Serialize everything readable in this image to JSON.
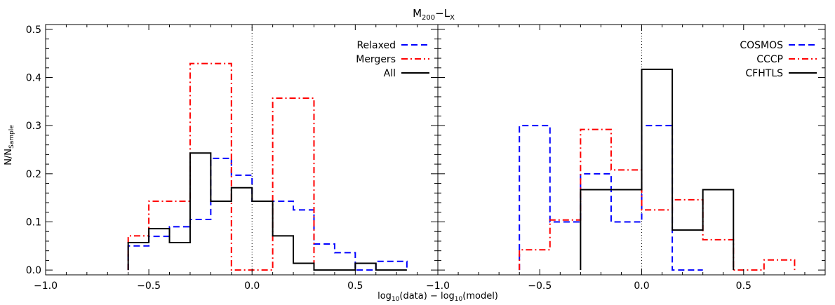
{
  "title_main": "M",
  "title_sub1": "200",
  "title_mid": "−L",
  "title_sub2": "X",
  "ylabel_main": "N/N",
  "ylabel_sub": "Sample",
  "xlabel": {
    "p1": "log",
    "s1": "10",
    "p2": "(data) − log",
    "s2": "10",
    "p3": "(model)"
  },
  "colors": {
    "blue": "#0000ff",
    "red": "#ff0000",
    "black": "#000000"
  },
  "chart_data": [
    {
      "type": "histogram",
      "panel": "left",
      "xlim": [
        -1.0,
        0.9
      ],
      "ylim": [
        -0.01,
        0.51
      ],
      "xticks": [
        "−1.0",
        "−0.5",
        "0.0",
        "0.5"
      ],
      "xtick_values": [
        -1.0,
        -0.5,
        0.0,
        0.5
      ],
      "yticks": [
        "0.0",
        "0.1",
        "0.2",
        "0.3",
        "0.4",
        "0.5"
      ],
      "ytick_values": [
        0.0,
        0.1,
        0.2,
        0.3,
        0.4,
        0.5
      ],
      "reference_line_x": 0.0,
      "legend_position": "top-right",
      "series": [
        {
          "name": "Relaxed",
          "style": "dashed",
          "color": "#0000ff",
          "edges": [
            -0.6,
            -0.5,
            -0.4,
            -0.3,
            -0.2,
            -0.1,
            0.0,
            0.1,
            0.2,
            0.3,
            0.4,
            0.5,
            0.6,
            0.75
          ],
          "values": [
            0.05,
            0.07,
            0.09,
            0.105,
            0.232,
            0.197,
            0.143,
            0.143,
            0.125,
            0.054,
            0.036,
            0.0,
            0.018
          ]
        },
        {
          "name": "Mergers",
          "style": "dash-dot",
          "color": "#ff0000",
          "edges": [
            -0.6,
            -0.5,
            -0.4,
            -0.3,
            -0.2,
            -0.1,
            0.0,
            0.1,
            0.2,
            0.3
          ],
          "values": [
            0.071,
            0.143,
            0.143,
            0.429,
            0.429,
            0.0,
            0.0,
            0.357,
            0.357
          ]
        },
        {
          "name": "All",
          "style": "solid",
          "color": "#000000",
          "edges": [
            -0.6,
            -0.5,
            -0.4,
            -0.3,
            -0.2,
            -0.1,
            0.0,
            0.1,
            0.2,
            0.3,
            0.4,
            0.5,
            0.6,
            0.75
          ],
          "values": [
            0.057,
            0.086,
            0.057,
            0.243,
            0.143,
            0.171,
            0.143,
            0.071,
            0.014,
            0.0,
            0.0,
            0.014,
            0.0
          ]
        }
      ]
    },
    {
      "type": "histogram",
      "panel": "right",
      "xlim": [
        -1.0,
        0.9
      ],
      "ylim": [
        -0.01,
        0.51
      ],
      "xticks": [
        "−1.0",
        "−0.5",
        "0.0",
        "0.5"
      ],
      "xtick_values": [
        -1.0,
        -0.5,
        0.0,
        0.5
      ],
      "yticks": [],
      "reference_line_x": 0.0,
      "legend_position": "top-right",
      "series": [
        {
          "name": "COSMOS",
          "style": "dashed",
          "color": "#0000ff",
          "edges": [
            -0.6,
            -0.45,
            -0.3,
            -0.15,
            0.0,
            0.15,
            0.3
          ],
          "values": [
            0.3,
            0.1,
            0.2,
            0.1,
            0.3,
            0.0
          ]
        },
        {
          "name": "CCCP",
          "style": "dash-dot",
          "color": "#ff0000",
          "edges": [
            -0.6,
            -0.45,
            -0.3,
            -0.15,
            0.0,
            0.15,
            0.3,
            0.45,
            0.6,
            0.75
          ],
          "values": [
            0.042,
            0.104,
            0.292,
            0.208,
            0.125,
            0.146,
            0.063,
            0.0,
            0.021
          ]
        },
        {
          "name": "CFHTLS",
          "style": "solid",
          "color": "#000000",
          "edges": [
            -0.3,
            -0.15,
            0.0,
            0.15,
            0.3,
            0.45
          ],
          "values": [
            0.167,
            0.167,
            0.417,
            0.083,
            0.167
          ]
        }
      ]
    }
  ]
}
